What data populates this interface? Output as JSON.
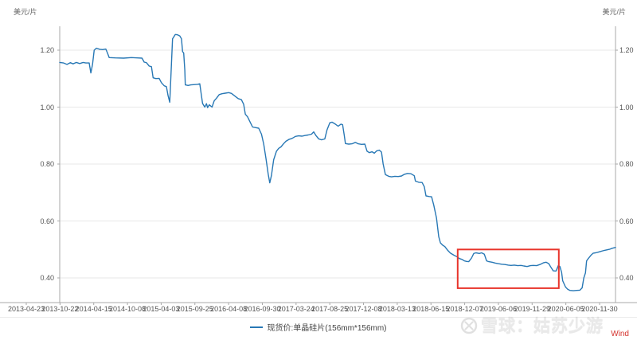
{
  "axis_units": {
    "left": "美元/片",
    "right": "美元/片"
  },
  "legend": {
    "label": "现货价:单晶硅片(156mm*156mm)"
  },
  "watermark": {
    "site": "雪球：姑苏少游",
    "source": "Wind"
  },
  "colors": {
    "line": "#2878b5",
    "annotation": "#e8352c",
    "grid": "#e7e7e7",
    "axis": "#a8a8a8",
    "tick_text": "#555555",
    "wind_red": "#d5342f",
    "watermark_gray": "#e9e9e9"
  },
  "chart_data": {
    "type": "line",
    "title": "",
    "ylabel": "美元/片",
    "grid": true,
    "legend_position": "bottom",
    "y_ticks": [
      1.2,
      1.0,
      0.8,
      0.6,
      0.4
    ],
    "y_tick_labels": [
      "1.20",
      "1.00",
      "0.80",
      "0.60",
      "0.40"
    ],
    "y_range_visible": [
      0.313,
      1.284
    ],
    "x_tick_labels": [
      "2013-04-23",
      "2013-10-22",
      "2014-04-15",
      "2014-10-08",
      "2015-04-03",
      "2015-09-25",
      "2016-04-08",
      "2016-09-30",
      "2017-03-24",
      "2017-08-25",
      "2017-12-08",
      "2018-03-13",
      "2018-06-15",
      "2018-12-07",
      "2019-06-06",
      "2019-11-29",
      "2020-06-05",
      "2020-11-30"
    ],
    "annotation_box": {
      "x0": 0.716,
      "x1": 0.898,
      "v_top": 0.5,
      "v_bottom": 0.364
    },
    "series": [
      {
        "name": "现货价:单晶硅片(156mm*156mm)",
        "color": "#2878b5",
        "points": [
          [
            0.0,
            1.157
          ],
          [
            0.007,
            1.155
          ],
          [
            0.013,
            1.15
          ],
          [
            0.019,
            1.156
          ],
          [
            0.024,
            1.152
          ],
          [
            0.03,
            1.157
          ],
          [
            0.036,
            1.153
          ],
          [
            0.042,
            1.157
          ],
          [
            0.047,
            1.155
          ],
          [
            0.053,
            1.155
          ],
          [
            0.056,
            1.12
          ],
          [
            0.059,
            1.15
          ],
          [
            0.062,
            1.2
          ],
          [
            0.066,
            1.207
          ],
          [
            0.072,
            1.203
          ],
          [
            0.077,
            1.202
          ],
          [
            0.083,
            1.204
          ],
          [
            0.086,
            1.19
          ],
          [
            0.089,
            1.174
          ],
          [
            0.1,
            1.173
          ],
          [
            0.115,
            1.172
          ],
          [
            0.129,
            1.174
          ],
          [
            0.139,
            1.173
          ],
          [
            0.148,
            1.172
          ],
          [
            0.152,
            1.158
          ],
          [
            0.156,
            1.156
          ],
          [
            0.161,
            1.144
          ],
          [
            0.165,
            1.142
          ],
          [
            0.168,
            1.103
          ],
          [
            0.173,
            1.1
          ],
          [
            0.179,
            1.101
          ],
          [
            0.183,
            1.086
          ],
          [
            0.188,
            1.075
          ],
          [
            0.192,
            1.072
          ],
          [
            0.195,
            1.04
          ],
          [
            0.198,
            1.017
          ],
          [
            0.201,
            1.15
          ],
          [
            0.203,
            1.24
          ],
          [
            0.208,
            1.255
          ],
          [
            0.212,
            1.254
          ],
          [
            0.216,
            1.25
          ],
          [
            0.219,
            1.24
          ],
          [
            0.221,
            1.195
          ],
          [
            0.223,
            1.19
          ],
          [
            0.225,
            1.13
          ],
          [
            0.226,
            1.078
          ],
          [
            0.231,
            1.076
          ],
          [
            0.236,
            1.078
          ],
          [
            0.248,
            1.08
          ],
          [
            0.252,
            1.082
          ],
          [
            0.255,
            1.04
          ],
          [
            0.257,
            1.013
          ],
          [
            0.261,
            1.0
          ],
          [
            0.264,
            1.012
          ],
          [
            0.266,
            0.998
          ],
          [
            0.269,
            1.008
          ],
          [
            0.274,
            1.0
          ],
          [
            0.278,
            1.022
          ],
          [
            0.282,
            1.031
          ],
          [
            0.287,
            1.044
          ],
          [
            0.292,
            1.047
          ],
          [
            0.298,
            1.049
          ],
          [
            0.304,
            1.051
          ],
          [
            0.309,
            1.048
          ],
          [
            0.315,
            1.039
          ],
          [
            0.321,
            1.03
          ],
          [
            0.327,
            1.026
          ],
          [
            0.331,
            1.01
          ],
          [
            0.334,
            0.975
          ],
          [
            0.338,
            0.966
          ],
          [
            0.342,
            0.95
          ],
          [
            0.347,
            0.93
          ],
          [
            0.352,
            0.928
          ],
          [
            0.358,
            0.926
          ],
          [
            0.363,
            0.905
          ],
          [
            0.367,
            0.87
          ],
          [
            0.371,
            0.82
          ],
          [
            0.375,
            0.765
          ],
          [
            0.378,
            0.734
          ],
          [
            0.381,
            0.76
          ],
          [
            0.385,
            0.815
          ],
          [
            0.39,
            0.845
          ],
          [
            0.394,
            0.855
          ],
          [
            0.398,
            0.86
          ],
          [
            0.403,
            0.872
          ],
          [
            0.407,
            0.88
          ],
          [
            0.413,
            0.887
          ],
          [
            0.418,
            0.89
          ],
          [
            0.424,
            0.897
          ],
          [
            0.43,
            0.899
          ],
          [
            0.436,
            0.898
          ],
          [
            0.441,
            0.9
          ],
          [
            0.447,
            0.902
          ],
          [
            0.453,
            0.905
          ],
          [
            0.457,
            0.913
          ],
          [
            0.461,
            0.9
          ],
          [
            0.466,
            0.888
          ],
          [
            0.471,
            0.885
          ],
          [
            0.477,
            0.888
          ],
          [
            0.481,
            0.92
          ],
          [
            0.486,
            0.945
          ],
          [
            0.49,
            0.947
          ],
          [
            0.496,
            0.94
          ],
          [
            0.501,
            0.933
          ],
          [
            0.506,
            0.94
          ],
          [
            0.509,
            0.938
          ],
          [
            0.512,
            0.9
          ],
          [
            0.514,
            0.872
          ],
          [
            0.52,
            0.87
          ],
          [
            0.526,
            0.871
          ],
          [
            0.532,
            0.876
          ],
          [
            0.537,
            0.871
          ],
          [
            0.543,
            0.869
          ],
          [
            0.549,
            0.87
          ],
          [
            0.553,
            0.845
          ],
          [
            0.557,
            0.84
          ],
          [
            0.562,
            0.843
          ],
          [
            0.566,
            0.838
          ],
          [
            0.57,
            0.846
          ],
          [
            0.575,
            0.849
          ],
          [
            0.579,
            0.842
          ],
          [
            0.582,
            0.8
          ],
          [
            0.586,
            0.763
          ],
          [
            0.592,
            0.757
          ],
          [
            0.597,
            0.755
          ],
          [
            0.603,
            0.757
          ],
          [
            0.609,
            0.756
          ],
          [
            0.615,
            0.758
          ],
          [
            0.62,
            0.764
          ],
          [
            0.626,
            0.767
          ],
          [
            0.632,
            0.766
          ],
          [
            0.638,
            0.759
          ],
          [
            0.64,
            0.74
          ],
          [
            0.646,
            0.736
          ],
          [
            0.652,
            0.735
          ],
          [
            0.656,
            0.72
          ],
          [
            0.659,
            0.688
          ],
          [
            0.665,
            0.686
          ],
          [
            0.669,
            0.685
          ],
          [
            0.673,
            0.655
          ],
          [
            0.678,
            0.61
          ],
          [
            0.682,
            0.545
          ],
          [
            0.685,
            0.523
          ],
          [
            0.689,
            0.515
          ],
          [
            0.693,
            0.51
          ],
          [
            0.698,
            0.497
          ],
          [
            0.703,
            0.487
          ],
          [
            0.709,
            0.48
          ],
          [
            0.715,
            0.474
          ],
          [
            0.719,
            0.468
          ],
          [
            0.724,
            0.465
          ],
          [
            0.728,
            0.46
          ],
          [
            0.732,
            0.458
          ],
          [
            0.736,
            0.457
          ],
          [
            0.741,
            0.47
          ],
          [
            0.745,
            0.486
          ],
          [
            0.749,
            0.488
          ],
          [
            0.755,
            0.486
          ],
          [
            0.759,
            0.488
          ],
          [
            0.764,
            0.483
          ],
          [
            0.768,
            0.46
          ],
          [
            0.772,
            0.457
          ],
          [
            0.778,
            0.455
          ],
          [
            0.784,
            0.452
          ],
          [
            0.789,
            0.45
          ],
          [
            0.795,
            0.448
          ],
          [
            0.801,
            0.447
          ],
          [
            0.807,
            0.445
          ],
          [
            0.812,
            0.444
          ],
          [
            0.818,
            0.445
          ],
          [
            0.824,
            0.443
          ],
          [
            0.83,
            0.444
          ],
          [
            0.835,
            0.442
          ],
          [
            0.841,
            0.44
          ],
          [
            0.847,
            0.443
          ],
          [
            0.852,
            0.444
          ],
          [
            0.858,
            0.443
          ],
          [
            0.864,
            0.447
          ],
          [
            0.87,
            0.453
          ],
          [
            0.875,
            0.455
          ],
          [
            0.88,
            0.45
          ],
          [
            0.884,
            0.437
          ],
          [
            0.888,
            0.425
          ],
          [
            0.893,
            0.424
          ],
          [
            0.897,
            0.443
          ],
          [
            0.9,
            0.44
          ],
          [
            0.903,
            0.42
          ],
          [
            0.905,
            0.39
          ],
          [
            0.91,
            0.368
          ],
          [
            0.914,
            0.36
          ],
          [
            0.918,
            0.356
          ],
          [
            0.924,
            0.355
          ],
          [
            0.93,
            0.356
          ],
          [
            0.936,
            0.357
          ],
          [
            0.94,
            0.365
          ],
          [
            0.943,
            0.4
          ],
          [
            0.946,
            0.418
          ],
          [
            0.948,
            0.46
          ],
          [
            0.951,
            0.468
          ],
          [
            0.956,
            0.48
          ],
          [
            0.96,
            0.487
          ],
          [
            0.964,
            0.488
          ],
          [
            0.968,
            0.49
          ],
          [
            0.973,
            0.493
          ],
          [
            0.977,
            0.495
          ],
          [
            0.981,
            0.497
          ],
          [
            0.986,
            0.499
          ],
          [
            0.99,
            0.501
          ],
          [
            0.994,
            0.504
          ],
          [
            1.0,
            0.507
          ]
        ]
      }
    ]
  }
}
